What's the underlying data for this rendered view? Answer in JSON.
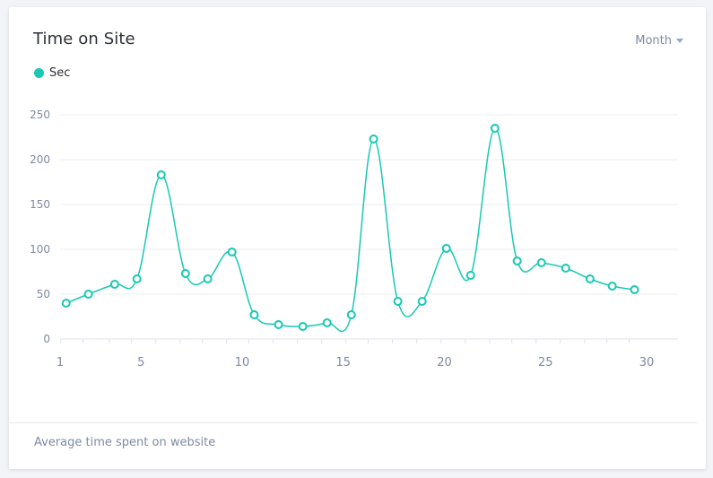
{
  "card": {
    "title": "Time on Site",
    "period_selector": "Month",
    "footer_text": "Average time spent on website"
  },
  "legend": {
    "series_label": "Sec"
  },
  "colors": {
    "series": "#17c8b4",
    "grid": "#e9ecf1",
    "tick_text": "#7d8aa3"
  },
  "chart_data": {
    "type": "line",
    "title": "Time on Site",
    "xlabel": "",
    "ylabel": "",
    "ylim": [
      0,
      250
    ],
    "yticks": [
      0,
      50,
      100,
      150,
      200,
      250
    ],
    "xlim": [
      1,
      30.5
    ],
    "xticks": [
      1,
      5,
      10,
      15,
      20,
      25,
      30
    ],
    "smooth": true,
    "grid": true,
    "legend_position": "top-left",
    "series": [
      {
        "name": "Sec",
        "points": [
          [
            1.3,
            40
          ],
          [
            2.4,
            50
          ],
          [
            3.7,
            61
          ],
          [
            4.8,
            67
          ],
          [
            6.0,
            183
          ],
          [
            7.2,
            73
          ],
          [
            8.3,
            67
          ],
          [
            9.5,
            97
          ],
          [
            10.6,
            27
          ],
          [
            11.8,
            16
          ],
          [
            13.0,
            14
          ],
          [
            14.2,
            18
          ],
          [
            15.4,
            27
          ],
          [
            16.5,
            223
          ],
          [
            17.7,
            42
          ],
          [
            18.9,
            42
          ],
          [
            20.1,
            101
          ],
          [
            21.3,
            71
          ],
          [
            22.5,
            235
          ],
          [
            23.6,
            87
          ],
          [
            24.8,
            85
          ],
          [
            26.0,
            79
          ],
          [
            27.2,
            67
          ],
          [
            28.3,
            59
          ],
          [
            29.4,
            55
          ]
        ]
      }
    ]
  }
}
